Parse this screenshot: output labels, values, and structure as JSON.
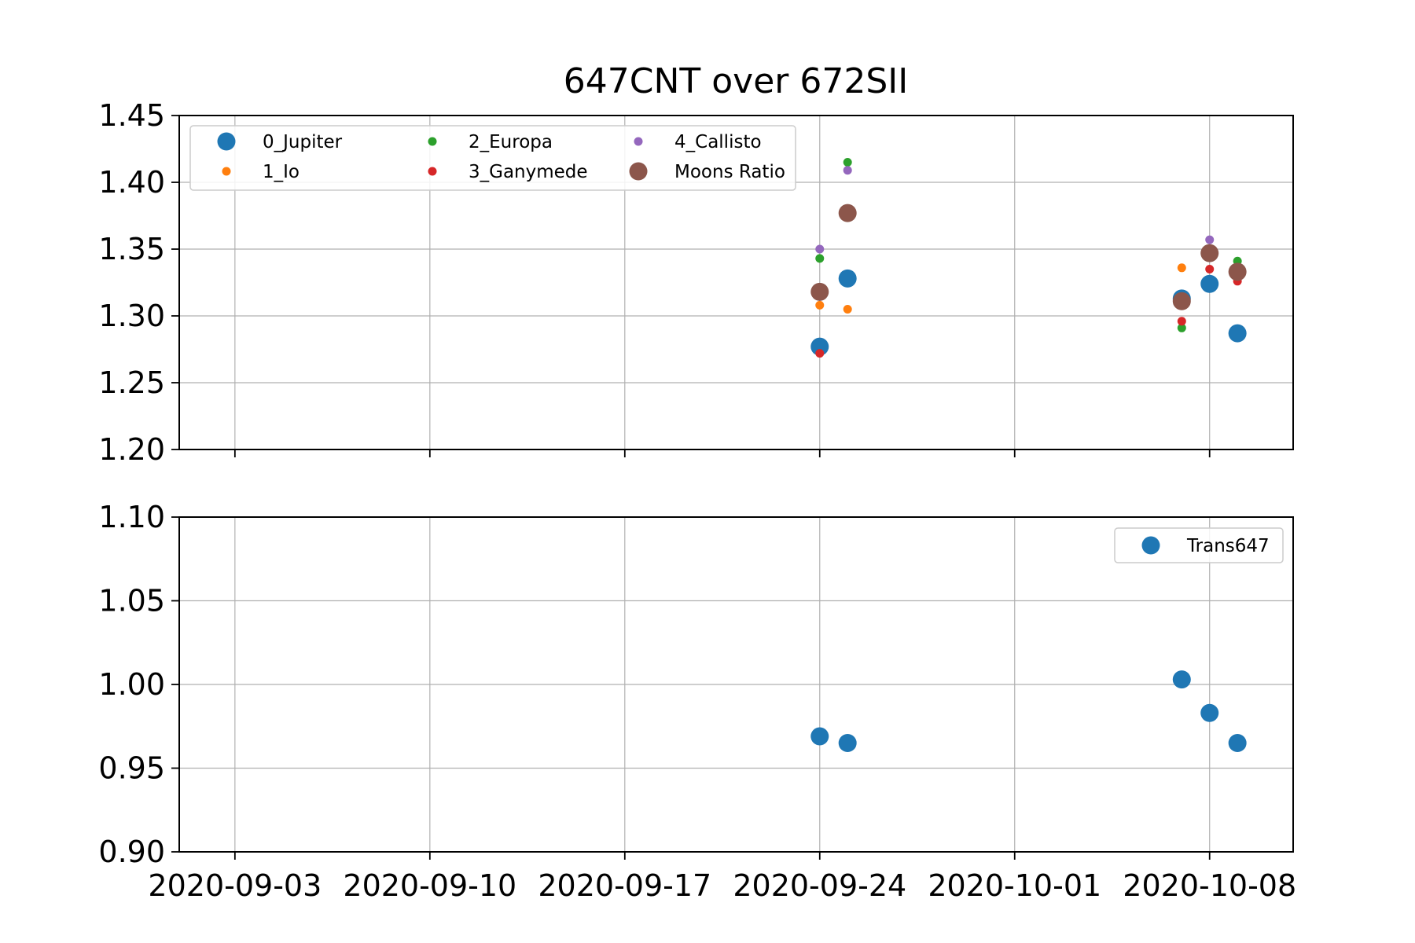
{
  "chart_data": [
    {
      "type": "scatter",
      "title": "647CNT over 672SII",
      "xlabel": "",
      "ylabel": "",
      "xlim": [
        "2020-09-01",
        "2020-10-11"
      ],
      "ylim": [
        1.2,
        1.45
      ],
      "yticks": [
        "1.20",
        "1.25",
        "1.30",
        "1.35",
        "1.40",
        "1.45"
      ],
      "xticks": [
        "2020-09-03",
        "2020-09-10",
        "2020-09-17",
        "2020-09-24",
        "2020-10-01",
        "2020-10-08"
      ],
      "xtick_labels_visible": false,
      "grid": true,
      "legend": {
        "placement": "upper-left",
        "columns": 3
      },
      "series": [
        {
          "name": "0_Jupiter",
          "color": "#1f77b4",
          "size": "large",
          "points": [
            {
              "x": "2020-09-24",
              "y": 1.277
            },
            {
              "x": "2020-09-25",
              "y": 1.328
            },
            {
              "x": "2020-10-07",
              "y": 1.313
            },
            {
              "x": "2020-10-08",
              "y": 1.324
            },
            {
              "x": "2020-10-09",
              "y": 1.287
            }
          ]
        },
        {
          "name": "1_Io",
          "color": "#ff7f0e",
          "size": "small",
          "points": [
            {
              "x": "2020-09-24",
              "y": 1.308
            },
            {
              "x": "2020-09-25",
              "y": 1.305
            },
            {
              "x": "2020-10-07",
              "y": 1.336
            },
            {
              "x": "2020-10-08",
              "y": 1.346
            },
            {
              "x": "2020-10-09",
              "y": 1.336
            }
          ]
        },
        {
          "name": "2_Europa",
          "color": "#2ca02c",
          "size": "small",
          "points": [
            {
              "x": "2020-09-24",
              "y": 1.343
            },
            {
              "x": "2020-09-25",
              "y": 1.415
            },
            {
              "x": "2020-10-07",
              "y": 1.291
            },
            {
              "x": "2020-10-08",
              "y": 1.346
            },
            {
              "x": "2020-10-09",
              "y": 1.341
            }
          ]
        },
        {
          "name": "3_Ganymede",
          "color": "#d62728",
          "size": "small",
          "points": [
            {
              "x": "2020-09-24",
              "y": 1.272
            },
            {
              "x": "2020-09-25",
              "y": 1.377
            },
            {
              "x": "2020-10-07",
              "y": 1.296
            },
            {
              "x": "2020-10-08",
              "y": 1.335
            },
            {
              "x": "2020-10-09",
              "y": 1.326
            }
          ]
        },
        {
          "name": "4_Callisto",
          "color": "#9467bd",
          "size": "small",
          "points": [
            {
              "x": "2020-09-24",
              "y": 1.35
            },
            {
              "x": "2020-09-25",
              "y": 1.409
            },
            {
              "x": "2020-10-07",
              "y": 1.314
            },
            {
              "x": "2020-10-08",
              "y": 1.357
            },
            {
              "x": "2020-10-09",
              "y": 1.333
            }
          ]
        },
        {
          "name": "Moons Ratio",
          "color": "#8c564b",
          "size": "large",
          "points": [
            {
              "x": "2020-09-24",
              "y": 1.318
            },
            {
              "x": "2020-09-25",
              "y": 1.377
            },
            {
              "x": "2020-10-07",
              "y": 1.311
            },
            {
              "x": "2020-10-08",
              "y": 1.347
            },
            {
              "x": "2020-10-09",
              "y": 1.333
            }
          ]
        }
      ]
    },
    {
      "type": "scatter",
      "title": "",
      "xlabel": "",
      "ylabel": "",
      "xlim": [
        "2020-09-01",
        "2020-10-11"
      ],
      "ylim": [
        0.9,
        1.1
      ],
      "yticks": [
        "0.90",
        "0.95",
        "1.00",
        "1.05",
        "1.10"
      ],
      "xticks": [
        "2020-09-03",
        "2020-09-10",
        "2020-09-17",
        "2020-09-24",
        "2020-10-01",
        "2020-10-08"
      ],
      "xtick_labels_visible": true,
      "grid": true,
      "legend": {
        "placement": "upper-right",
        "columns": 1
      },
      "series": [
        {
          "name": "Trans647",
          "color": "#1f77b4",
          "size": "large",
          "points": [
            {
              "x": "2020-09-24",
              "y": 0.969
            },
            {
              "x": "2020-09-25",
              "y": 0.965
            },
            {
              "x": "2020-10-07",
              "y": 1.003
            },
            {
              "x": "2020-10-08",
              "y": 0.983
            },
            {
              "x": "2020-10-09",
              "y": 0.965
            }
          ]
        }
      ]
    }
  ]
}
